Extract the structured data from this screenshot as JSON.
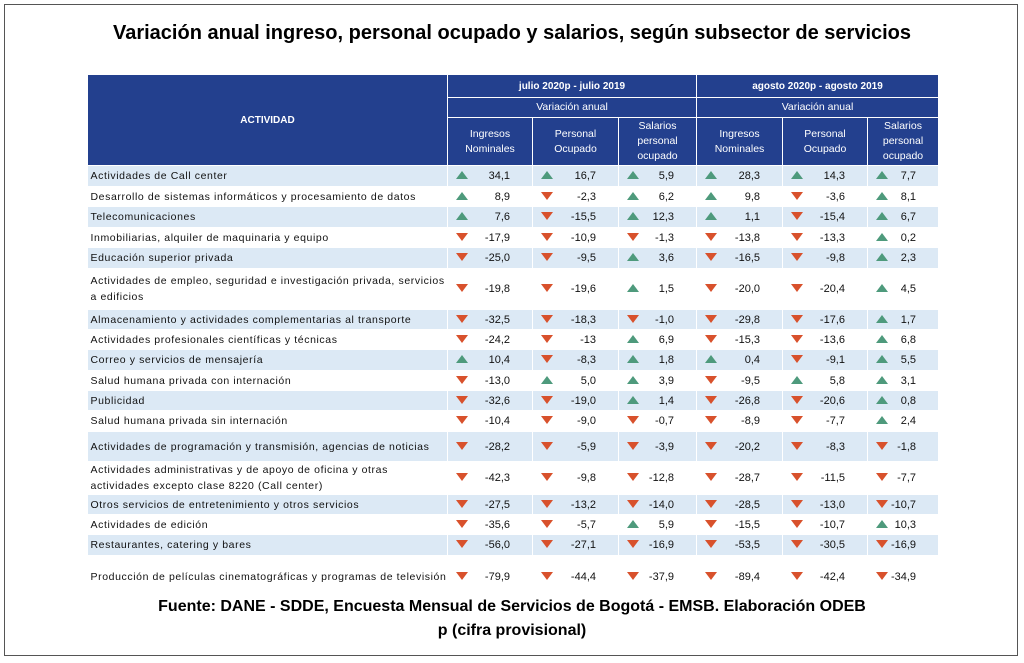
{
  "title": "Variación anual ingreso, personal ocupado y salarios, según subsector de servicios",
  "header": {
    "activity": "ACTIVIDAD",
    "periods": [
      "julio 2020p - julio 2019",
      "agosto 2020p - agosto 2019"
    ],
    "variation": "Variación anual",
    "columns": [
      "Ingresos Nominales",
      "Personal Ocupado",
      "Salarios personal ocupado"
    ]
  },
  "colors": {
    "header_bg": "#23408e",
    "row_alt": "#dce9f5",
    "up": "#4e9a7c",
    "down": "#d8512c"
  },
  "rows": [
    {
      "activity": "Actividades de Call center",
      "values": [
        "34,1",
        "16,7",
        "5,9",
        "28,3",
        "14,3",
        "7,7"
      ]
    },
    {
      "activity": "Desarrollo de sistemas informáticos y procesamiento de datos",
      "values": [
        "8,9",
        "-2,3",
        "6,2",
        "9,8",
        "-3,6",
        "8,1"
      ]
    },
    {
      "activity": "Telecomunicaciones",
      "values": [
        "7,6",
        "-15,5",
        "12,3",
        "1,1",
        "-15,4",
        "6,7"
      ]
    },
    {
      "activity": "Inmobiliarias, alquiler de maquinaria y equipo",
      "values": [
        "-17,9",
        "-10,9",
        "-1,3",
        "-13,8",
        "-13,3",
        "0,2"
      ]
    },
    {
      "activity": "Educación superior privada",
      "values": [
        "-25,0",
        "-9,5",
        "3,6",
        "-16,5",
        "-9,8",
        "2,3"
      ]
    },
    {
      "activity": "Actividades de empleo, seguridad e investigación privada, servicios a edificios",
      "values": [
        "-19,8",
        "-19,6",
        "1,5",
        "-20,0",
        "-20,4",
        "4,5"
      ]
    },
    {
      "activity": "Almacenamiento y actividades complementarias al transporte",
      "values": [
        "-32,5",
        "-18,3",
        "-1,0",
        "-29,8",
        "-17,6",
        "1,7"
      ]
    },
    {
      "activity": "Actividades profesionales científicas y técnicas",
      "values": [
        "-24,2",
        "-13",
        "6,9",
        "-15,3",
        "-13,6",
        "6,8"
      ]
    },
    {
      "activity": "Correo y servicios de mensajería",
      "values": [
        "10,4",
        "-8,3",
        "1,8",
        "0,4",
        "-9,1",
        "5,5"
      ]
    },
    {
      "activity": "Salud humana privada con internación",
      "values": [
        "-13,0",
        "5,0",
        "3,9",
        "-9,5",
        "5,8",
        "3,1"
      ]
    },
    {
      "activity": "Publicidad",
      "values": [
        "-32,6",
        "-19,0",
        "1,4",
        "-26,8",
        "-20,6",
        "0,8"
      ]
    },
    {
      "activity": "Salud humana privada sin internación",
      "values": [
        "-10,4",
        "-9,0",
        "-0,7",
        "-8,9",
        "-7,7",
        "2,4"
      ]
    },
    {
      "activity": "Actividades de programación y transmisión,  agencias de noticias",
      "values": [
        "-28,2",
        "-5,9",
        "-3,9",
        "-20,2",
        "-8,3",
        "-1,8"
      ]
    },
    {
      "activity": "Actividades administrativas y de apoyo de oficina y otras actividades excepto clase 8220 (Call center)",
      "values": [
        "-42,3",
        "-9,8",
        "-12,8",
        "-28,7",
        "-11,5",
        "-7,7"
      ]
    },
    {
      "activity": "Otros servicios de entretenimiento y otros servicios",
      "values": [
        "-27,5",
        "-13,2",
        "-14,0",
        "-28,5",
        "-13,0",
        "-10,7"
      ]
    },
    {
      "activity": "Actividades de edición",
      "values": [
        "-35,6",
        "-5,7",
        "5,9",
        "-15,5",
        "-10,7",
        "10,3"
      ]
    },
    {
      "activity": "Restaurantes, catering y bares",
      "values": [
        "-56,0",
        "-27,1",
        "-16,9",
        "-53,5",
        "-30,5",
        "-16,9"
      ]
    },
    {
      "activity": "Producción de películas cinematográficas y programas de televisión",
      "values": [
        "-79,9",
        "-44,4",
        "-37,9",
        "-89,4",
        "-42,4",
        "-34,9"
      ]
    }
  ],
  "footer": {
    "source": "Fuente: DANE - SDDE, Encuesta Mensual de Servicios de Bogotá - EMSB. Elaboración ODEB",
    "note": "p (cifra provisional)"
  }
}
